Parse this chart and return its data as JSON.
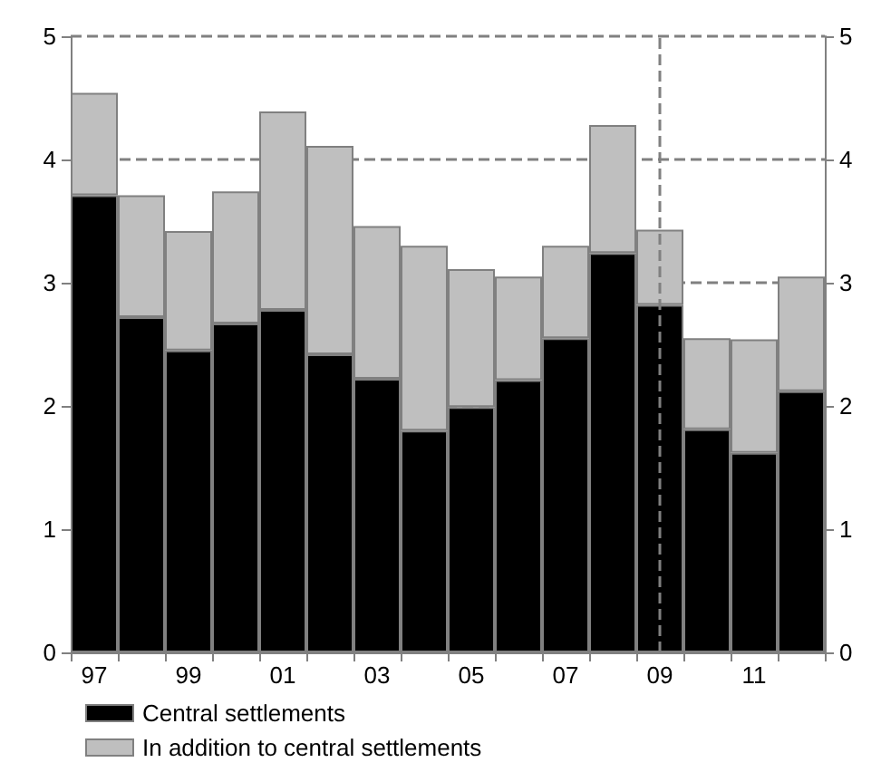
{
  "chart_data": {
    "type": "bar",
    "stacked": true,
    "categories": [
      "97",
      null,
      "99",
      null,
      "01",
      null,
      "03",
      null,
      "05",
      null,
      "07",
      null,
      "09",
      null,
      "11",
      null
    ],
    "series": [
      {
        "name": "Central settlements",
        "color": "#000000",
        "values": [
          3.71,
          2.72,
          2.45,
          2.67,
          2.78,
          2.42,
          2.22,
          1.8,
          1.99,
          2.21,
          2.55,
          3.24,
          2.82,
          1.81,
          1.62,
          2.12
        ]
      },
      {
        "name": "In addition to central settlements",
        "color": "#bfbfbf",
        "values": [
          0.83,
          0.99,
          0.97,
          1.07,
          1.61,
          1.69,
          1.24,
          1.5,
          1.12,
          0.84,
          0.75,
          1.04,
          0.61,
          0.74,
          0.92,
          0.93
        ]
      }
    ],
    "ylim": [
      0,
      5
    ],
    "yticks": [
      0,
      1,
      2,
      3,
      4,
      5
    ],
    "y2lim": [
      0,
      5
    ],
    "y2ticks": [
      0,
      1,
      2,
      3,
      4,
      5
    ],
    "ref_lines": [
      {
        "axis": "x",
        "value": "09",
        "color": "#808080",
        "line_style": "dashed"
      }
    ],
    "grid": "y",
    "legend": "bottom left"
  }
}
